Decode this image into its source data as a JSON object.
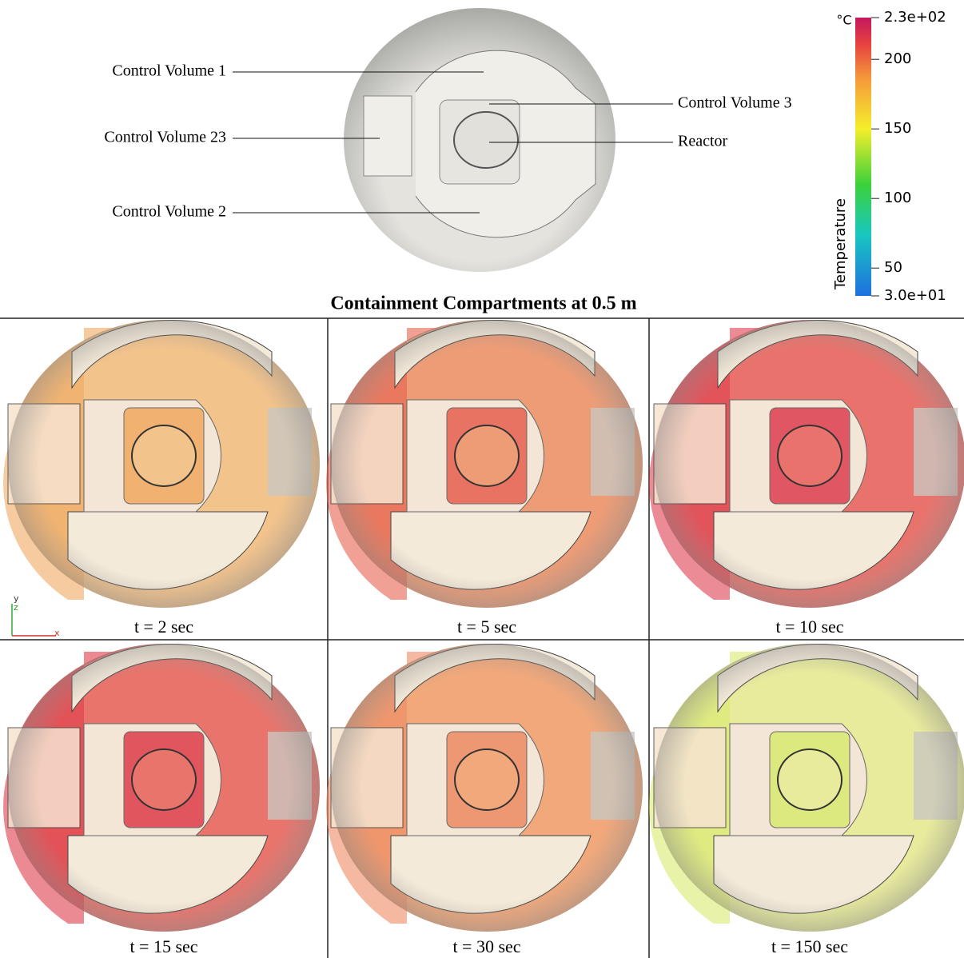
{
  "schematic": {
    "labels": [
      "Control Volume 1",
      "Control Volume 23",
      "Control Volume 2",
      "Control Volume 3",
      "Reactor"
    ]
  },
  "title": "Containment Compartments at 0.5 m",
  "colorbar": {
    "unit": "°C",
    "label": "Temperature",
    "lim": [
      30,
      230
    ],
    "ticks": [
      {
        "value": 230,
        "label": "2.3e+02"
      },
      200,
      150,
      100,
      50,
      {
        "value": 30,
        "label": "3.0e+01"
      }
    ]
  },
  "panels": [
    "t = 2 sec",
    "t = 5 sec",
    "t = 10 sec",
    "t = 15 sec",
    "t = 30 sec",
    "t = 150 sec"
  ],
  "axes_triad": [
    "y",
    "z",
    "x"
  ]
}
